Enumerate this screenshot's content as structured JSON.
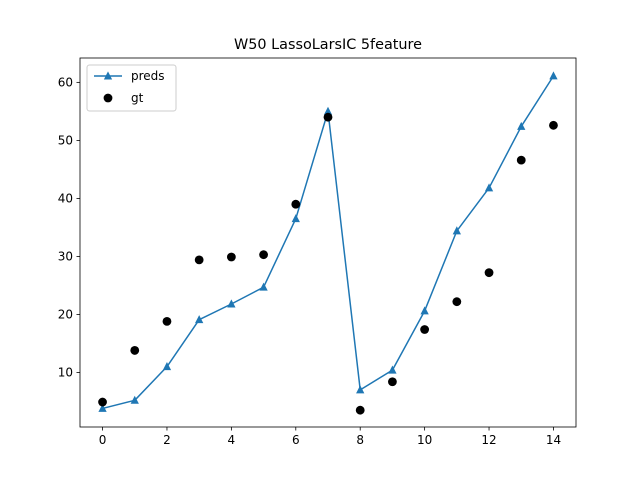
{
  "chart_data": {
    "type": "line",
    "title": "W50 LassoLarsIC 5feature",
    "xlabel": "",
    "ylabel": "",
    "xlim": [
      -0.7,
      14.7
    ],
    "ylim": [
      0.6,
      64.2
    ],
    "xticks": [
      0,
      2,
      4,
      6,
      8,
      10,
      12,
      14
    ],
    "yticks": [
      10,
      20,
      30,
      40,
      50,
      60
    ],
    "grid": false,
    "legend_position": "top-left",
    "series": [
      {
        "name": "preds",
        "style": "line-with-triangle-markers",
        "color": "#1f77b4",
        "x": [
          0,
          1,
          2,
          3,
          4,
          5,
          6,
          7,
          8,
          9,
          10,
          11,
          12,
          13,
          14
        ],
        "y": [
          3.8,
          5.2,
          11.0,
          19.1,
          21.8,
          24.7,
          36.5,
          55.0,
          7.0,
          10.4,
          20.6,
          34.4,
          41.8,
          52.4,
          61.1
        ]
      },
      {
        "name": "gt",
        "style": "scatter-circle",
        "color": "#000000",
        "x": [
          0,
          1,
          2,
          3,
          4,
          5,
          6,
          7,
          8,
          9,
          10,
          11,
          12,
          13,
          14
        ],
        "y": [
          4.9,
          13.8,
          18.8,
          29.4,
          29.9,
          30.3,
          39.0,
          54.0,
          3.5,
          8.4,
          17.4,
          22.2,
          27.2,
          46.6,
          52.6
        ]
      }
    ]
  }
}
